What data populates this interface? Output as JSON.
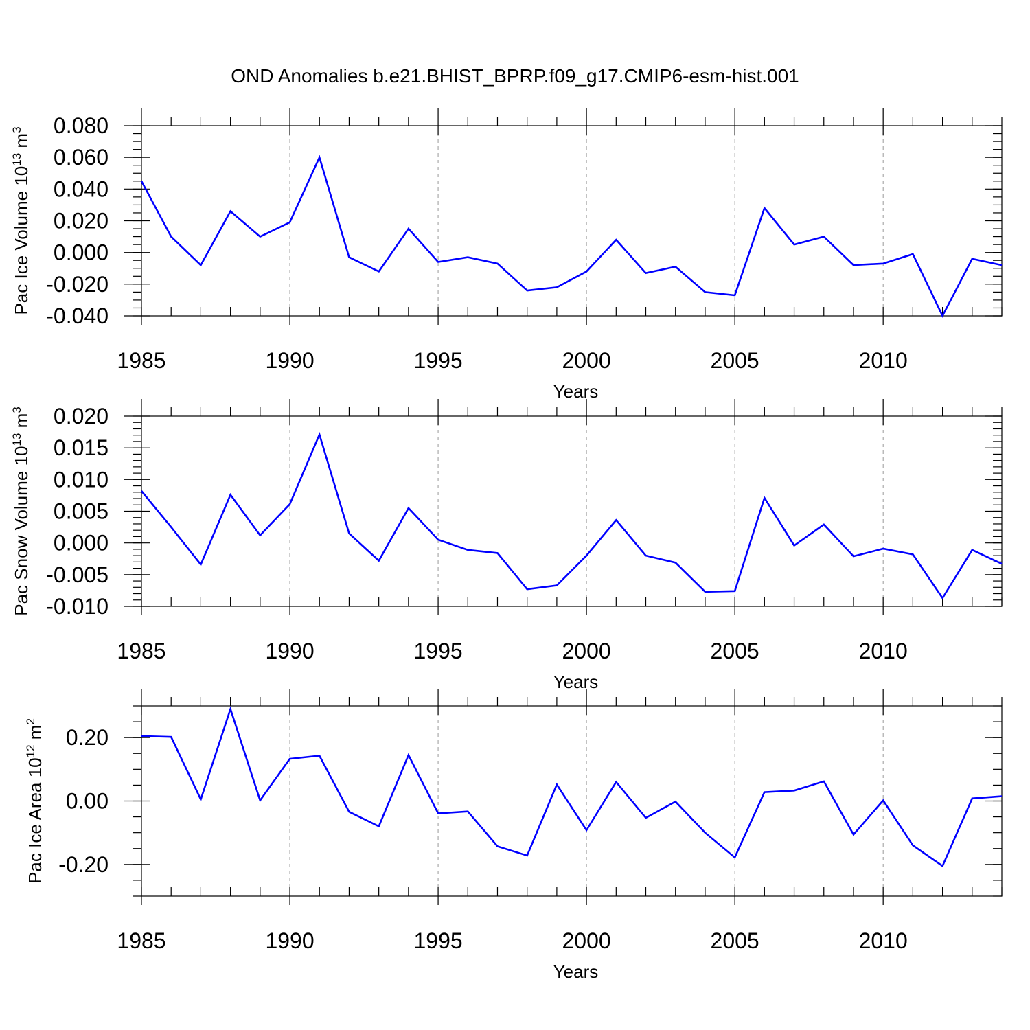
{
  "chart_data": {
    "title": "OND Anomalies b.e21.BHIST_BPRP.f09_g17.CMIP6-esm-hist.001",
    "type": "line",
    "line_color": "#0000ff",
    "x": [
      1985,
      1986,
      1987,
      1988,
      1989,
      1990,
      1991,
      1992,
      1993,
      1994,
      1995,
      1996,
      1997,
      1998,
      1999,
      2000,
      2001,
      2002,
      2003,
      2004,
      2005,
      2006,
      2007,
      2008,
      2009,
      2010,
      2011,
      2012,
      2013,
      2014
    ],
    "xlim": [
      1985,
      2014
    ],
    "xticks": [
      "1985",
      "1990",
      "1995",
      "2000",
      "2005",
      "2010"
    ],
    "xlabel": "Years",
    "panels": [
      {
        "name": "ice-volume",
        "ylabel_main": "Pac Ice Volume 10",
        "ylabel_exp": "13",
        "ylabel_unit": " m",
        "ylabel_unit_exp": "3",
        "ylim": [
          -0.04,
          0.08
        ],
        "yticks": [
          "0.080",
          "0.060",
          "0.040",
          "0.020",
          "0.000",
          "-0.020",
          "-0.040"
        ],
        "ytick_values": [
          0.08,
          0.06,
          0.04,
          0.02,
          0.0,
          -0.02,
          -0.04
        ],
        "minor_step": 0.005,
        "values": [
          0.045,
          0.01,
          -0.008,
          0.026,
          0.01,
          0.019,
          0.06,
          -0.003,
          -0.012,
          0.015,
          -0.006,
          -0.003,
          -0.007,
          -0.024,
          -0.022,
          -0.012,
          0.008,
          -0.013,
          -0.009,
          -0.025,
          -0.027,
          0.028,
          0.005,
          0.01,
          -0.008,
          -0.007,
          -0.001,
          -0.04,
          -0.004,
          -0.008
        ]
      },
      {
        "name": "snow-volume",
        "ylabel_main": "Pac Snow Volume 10",
        "ylabel_exp": "13",
        "ylabel_unit": " m",
        "ylabel_unit_exp": "3",
        "ylim": [
          -0.01,
          0.02
        ],
        "yticks": [
          "0.020",
          "0.015",
          "0.010",
          "0.005",
          "0.000",
          "-0.005",
          "-0.010"
        ],
        "ytick_values": [
          0.02,
          0.015,
          0.01,
          0.005,
          0.0,
          -0.005,
          -0.01
        ],
        "minor_step": 0.001,
        "values": [
          0.0082,
          0.0025,
          -0.0034,
          0.0076,
          0.0012,
          0.0061,
          0.0171,
          0.0015,
          -0.0028,
          0.0055,
          0.0005,
          -0.0011,
          -0.0016,
          -0.0073,
          -0.0067,
          -0.002,
          0.0036,
          -0.002,
          -0.0031,
          -0.0077,
          -0.0076,
          0.0071,
          -0.0004,
          0.0029,
          -0.0021,
          -0.0009,
          -0.0018,
          -0.0087,
          -0.0011,
          -0.0033
        ]
      },
      {
        "name": "ice-area",
        "ylabel_main": "Pac Ice Area 10",
        "ylabel_exp": "12",
        "ylabel_unit": " m",
        "ylabel_unit_exp": "2",
        "ylim": [
          -0.3,
          0.3
        ],
        "yticks": [
          "0.20",
          "0.00",
          "-0.20"
        ],
        "ytick_values": [
          0.2,
          0.0,
          -0.2
        ],
        "minor_step": 0.05,
        "values": [
          0.205,
          0.202,
          0.005,
          0.29,
          0.002,
          0.133,
          0.143,
          -0.034,
          -0.08,
          0.145,
          -0.039,
          -0.033,
          -0.143,
          -0.172,
          0.052,
          -0.092,
          0.06,
          -0.053,
          -0.002,
          -0.1,
          -0.178,
          0.028,
          0.033,
          0.062,
          -0.106,
          0.002,
          -0.14,
          -0.205,
          0.008,
          0.015
        ]
      }
    ]
  }
}
